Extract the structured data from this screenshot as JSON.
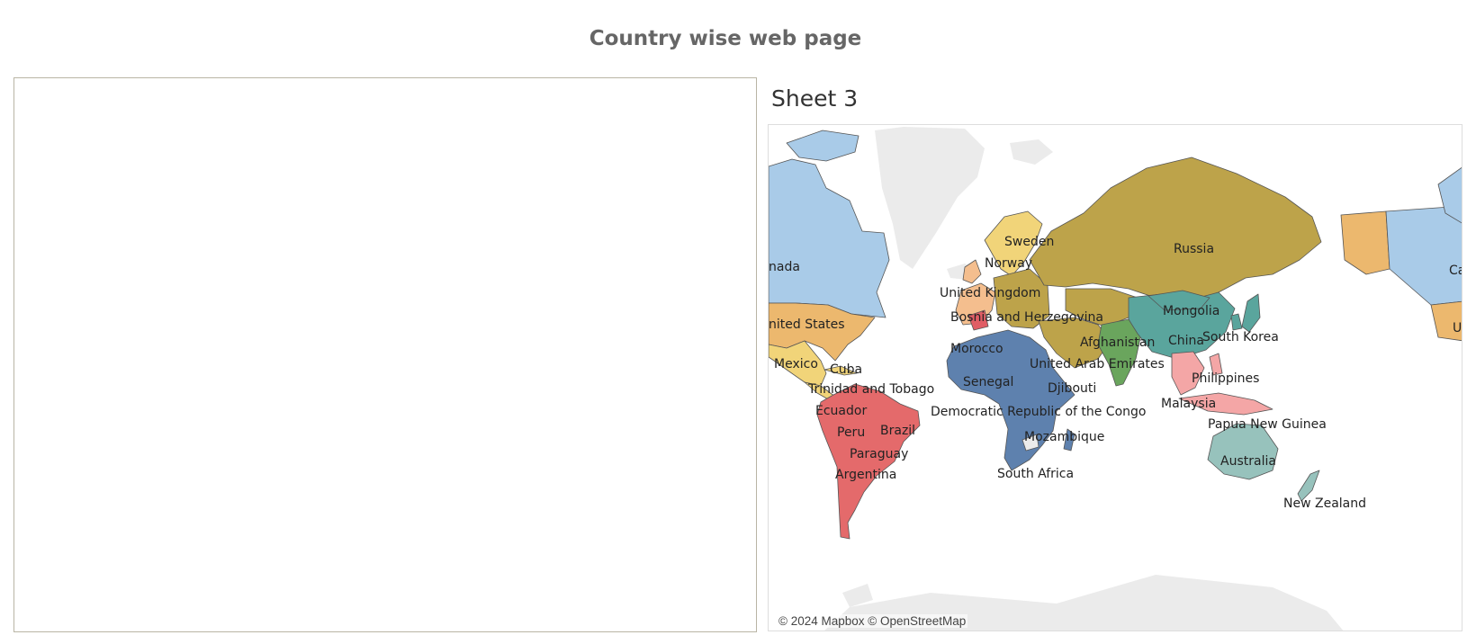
{
  "dashboard": {
    "title": "Country wise web page"
  },
  "sheet": {
    "title": "Sheet 3"
  },
  "map": {
    "attribution": "© 2024 Mapbox © OpenStreetMap",
    "colors": {
      "background_land": "#ebebeb",
      "north_america_blue": "#a9cbe8",
      "usa_orange": "#ecb86e",
      "mexico_yellow": "#f1d479",
      "south_america_red": "#e46a6b",
      "africa_blue": "#5e81ae",
      "eurasia_olive": "#bda34a",
      "china_teal": "#5aa59d",
      "india_green": "#6aa55d",
      "southeast_asia_pink": "#f4a6a6",
      "oceania_teal": "#97c2bc",
      "western_europe_peach": "#f4be8e",
      "italy_red": "#e05d65"
    },
    "labels": [
      "nada",
      "nited States",
      "Mexico",
      "Cuba",
      "Trinidad and Tobago",
      "Ecuador",
      "Peru",
      "Brazil",
      "Paraguay",
      "Argentina",
      "Sweden",
      "Norway",
      "United Kingdom",
      "Bosnia and Herzegovina",
      "Morocco",
      "Senegal",
      "Djibouti",
      "Democratic Republic of the Congo",
      "Mozambique",
      "South Africa",
      "United Arab Emirates",
      "Afghanistan",
      "Russia",
      "Mongolia",
      "China",
      "South Korea",
      "Philippines",
      "Malaysia",
      "Papua New Guinea",
      "Australia",
      "New Zealand",
      "Ca",
      "U"
    ]
  }
}
